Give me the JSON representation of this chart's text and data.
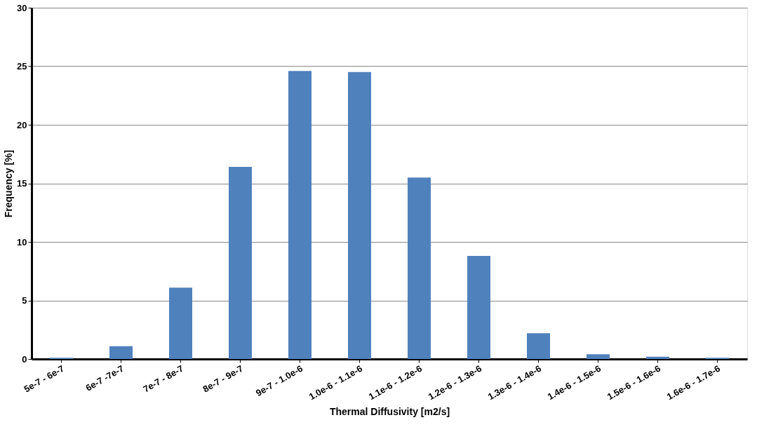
{
  "chart_data": {
    "type": "bar",
    "xlabel": "Thermal Diffusivity [m2/s]",
    "ylabel": "Frequency [%]",
    "categories": [
      "5e-7 - 6e-7",
      "6e-7 -7e-7",
      "7e-7 - 8e-7",
      "8e-7 - 9e-7",
      "9e-7 - 1.0e-6",
      "1.0e-6 - 1.1e-6",
      "1.1e-6 - 1.2e-6",
      "1.2e-6 - 1.3e-6",
      "1.3e-6 - 1.4e-6",
      "1.4e-6 - 1.5e-6",
      "1.5e-6 - 1.6e-6",
      "1.6e-6 - 1.7e-6"
    ],
    "values": [
      0.1,
      1.1,
      6.1,
      16.4,
      24.6,
      24.5,
      15.5,
      8.8,
      2.2,
      0.4,
      0.2,
      0.1
    ],
    "color": "#4f81bd",
    "ylim": [
      0,
      30
    ],
    "yticks": [
      0,
      5,
      10,
      15,
      20,
      25,
      30
    ],
    "grid": "y"
  }
}
